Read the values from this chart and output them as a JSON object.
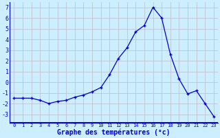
{
  "hours": [
    0,
    1,
    2,
    3,
    4,
    5,
    6,
    7,
    8,
    9,
    10,
    11,
    12,
    13,
    14,
    15,
    16,
    17,
    18,
    19,
    20,
    21,
    22,
    23
  ],
  "temps": [
    -1.5,
    -1.5,
    -1.5,
    -1.7,
    -2.0,
    -1.8,
    -1.7,
    -1.4,
    -1.2,
    -0.9,
    -0.5,
    0.7,
    2.2,
    3.2,
    4.7,
    5.3,
    7.0,
    6.0,
    2.6,
    0.3,
    -1.1,
    -0.8,
    -2.0,
    -3.2
  ],
  "line_color": "#0000cc",
  "marker": "+",
  "bg_color": "#cceeff",
  "grid_color": "#bbbbcc",
  "xlabel": "Graphe des températures (°c)",
  "xlabel_color": "#0000cc",
  "tick_color": "#0000cc",
  "ylim": [
    -3.8,
    7.5
  ],
  "yticks": [
    -3,
    -2,
    -1,
    0,
    1,
    2,
    3,
    4,
    5,
    6,
    7
  ],
  "xlim": [
    -0.5,
    23.5
  ],
  "title": ""
}
